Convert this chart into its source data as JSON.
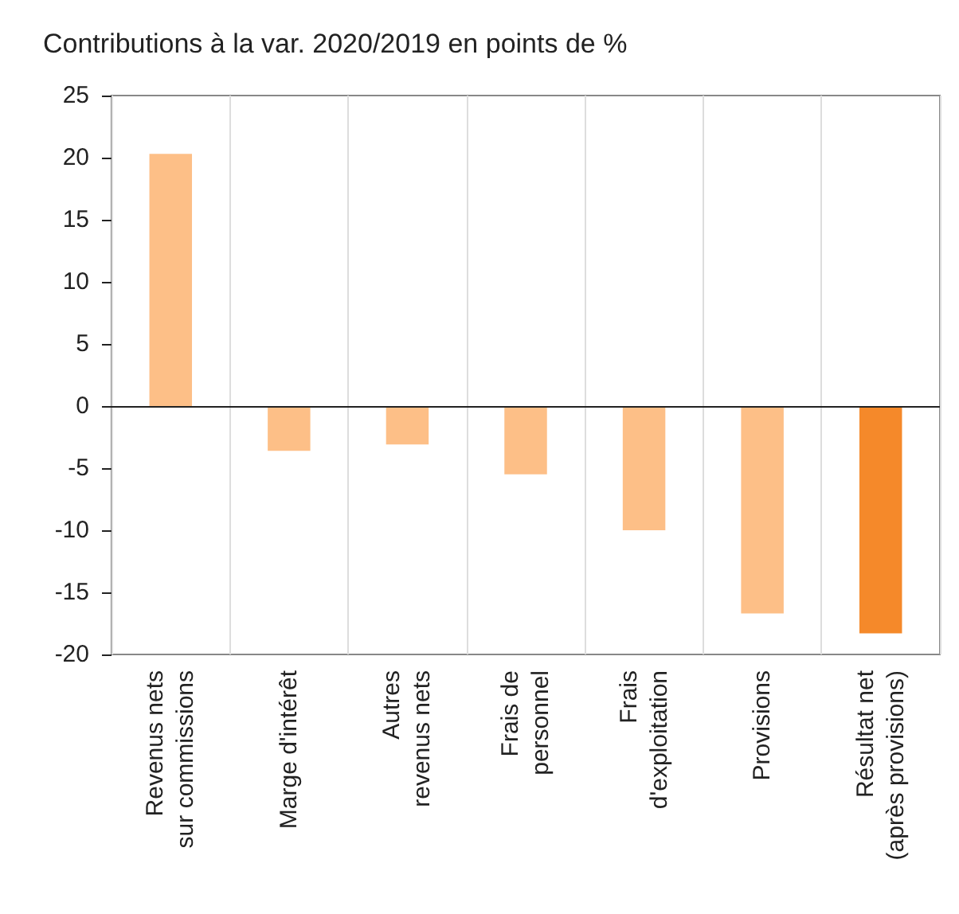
{
  "chart_data": {
    "type": "bar",
    "title": "Contributions à la var. 2020/2019 en points de %",
    "categories": [
      "Revenus nets\nsur commissions",
      "Marge d'intérêt",
      "Autres\nrevenus nets",
      "Frais de\npersonnel",
      "Frais\nd'exploitation",
      "Provisions",
      "Résultat net\n(après provisions)"
    ],
    "values": [
      20.3,
      -3.6,
      -3.1,
      -5.5,
      -10.0,
      -16.7,
      -18.3
    ],
    "colors": [
      "#fdbf87",
      "#fdbf87",
      "#fdbf87",
      "#fdbf87",
      "#fdbf87",
      "#fdbf87",
      "#f5892a"
    ],
    "ylim": [
      -20,
      25
    ],
    "yticks": [
      -20,
      -15,
      -10,
      -5,
      0,
      5,
      10,
      15,
      20,
      25
    ],
    "grid": "x"
  }
}
